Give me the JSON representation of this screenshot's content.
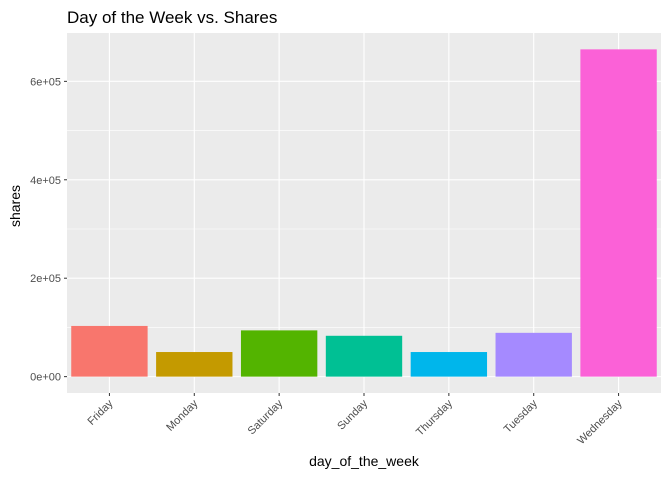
{
  "chart_data": {
    "type": "bar",
    "title": "Day of the Week vs. Shares",
    "xlabel": "day_of_the_week",
    "ylabel": "shares",
    "categories": [
      "Friday",
      "Monday",
      "Saturday",
      "Sunday",
      "Thursday",
      "Tuesday",
      "Wednesday"
    ],
    "values": [
      103000,
      50000,
      94000,
      83000,
      50000,
      89000,
      665000
    ],
    "colors": [
      "#F8766D",
      "#C49A00",
      "#53B400",
      "#00C094",
      "#00B6EB",
      "#A58AFF",
      "#FB61D7"
    ],
    "ylim": [
      -33250,
      698250
    ],
    "yticks": [
      0,
      200000,
      400000,
      600000
    ],
    "ytick_labels": [
      "0e+00",
      "2e+05",
      "4e+05",
      "6e+05"
    ],
    "grid": true,
    "legend": "none",
    "panel_background": "#EBEBEB",
    "grid_color": "#FFFFFF"
  }
}
